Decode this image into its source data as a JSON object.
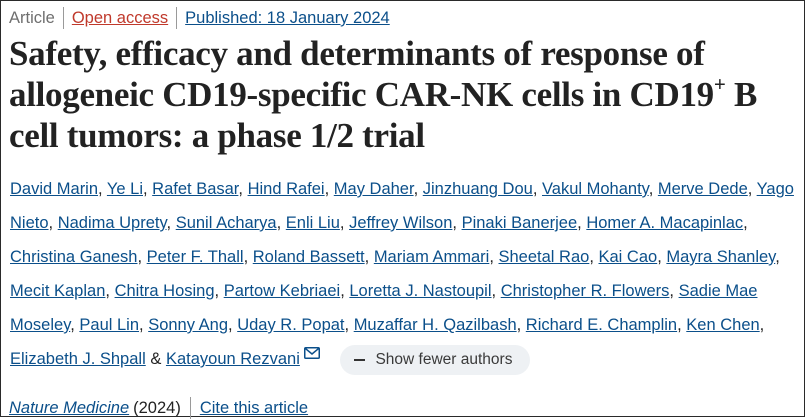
{
  "meta": {
    "type": "Article",
    "open_access": "Open access",
    "published": "Published: 18 January 2024"
  },
  "title": {
    "part1": "Safety, efficacy and determinants of response of allogeneic CD19-specific CAR-NK cells in CD19",
    "sup": "+",
    "part2": " B cell tumors: a phase 1/2 trial"
  },
  "authors": [
    [
      "David Marin",
      "Ye Li",
      "Rafet Basar",
      "Hind Rafei",
      "May Daher",
      "Jinzhuang Dou",
      "Vakul Mohanty",
      "Merve Dede",
      "Yago"
    ],
    [
      "Nieto",
      "Nadima Uprety",
      "Sunil Acharya",
      "Enli Liu",
      "Jeffrey Wilson",
      "Pinaki Banerjee",
      "Homer A. Macapinlac"
    ],
    [
      "Christina Ganesh",
      "Peter F. Thall",
      "Roland Bassett",
      "Mariam Ammari",
      "Sheetal Rao",
      "Kai Cao",
      "Mayra Shanley"
    ],
    [
      "Mecit Kaplan",
      "Chitra Hosing",
      "Partow Kebriaei",
      "Loretta J. Nastoupil",
      "Christopher R. Flowers",
      "Sadie Mae"
    ],
    [
      "Moseley",
      "Paul Lin",
      "Sonny Ang",
      "Uday R. Popat",
      "Muzaffar H. Qazilbash",
      "Richard E. Champlin",
      "Ken Chen"
    ]
  ],
  "last_authors": {
    "first": "Elizabeth J. Shpall",
    "amp": "&",
    "last": "Katayoun Rezvani",
    "mail_icon": "envelope-icon",
    "show_fewer": "Show fewer authors"
  },
  "footer": {
    "journal": "Nature Medicine",
    "year": "(2024)",
    "cite": "Cite this article"
  },
  "colors": {
    "link": "#0b4f8a",
    "open_access": "#c0392b",
    "title": "#222222",
    "pill_bg": "#eef1f4"
  }
}
